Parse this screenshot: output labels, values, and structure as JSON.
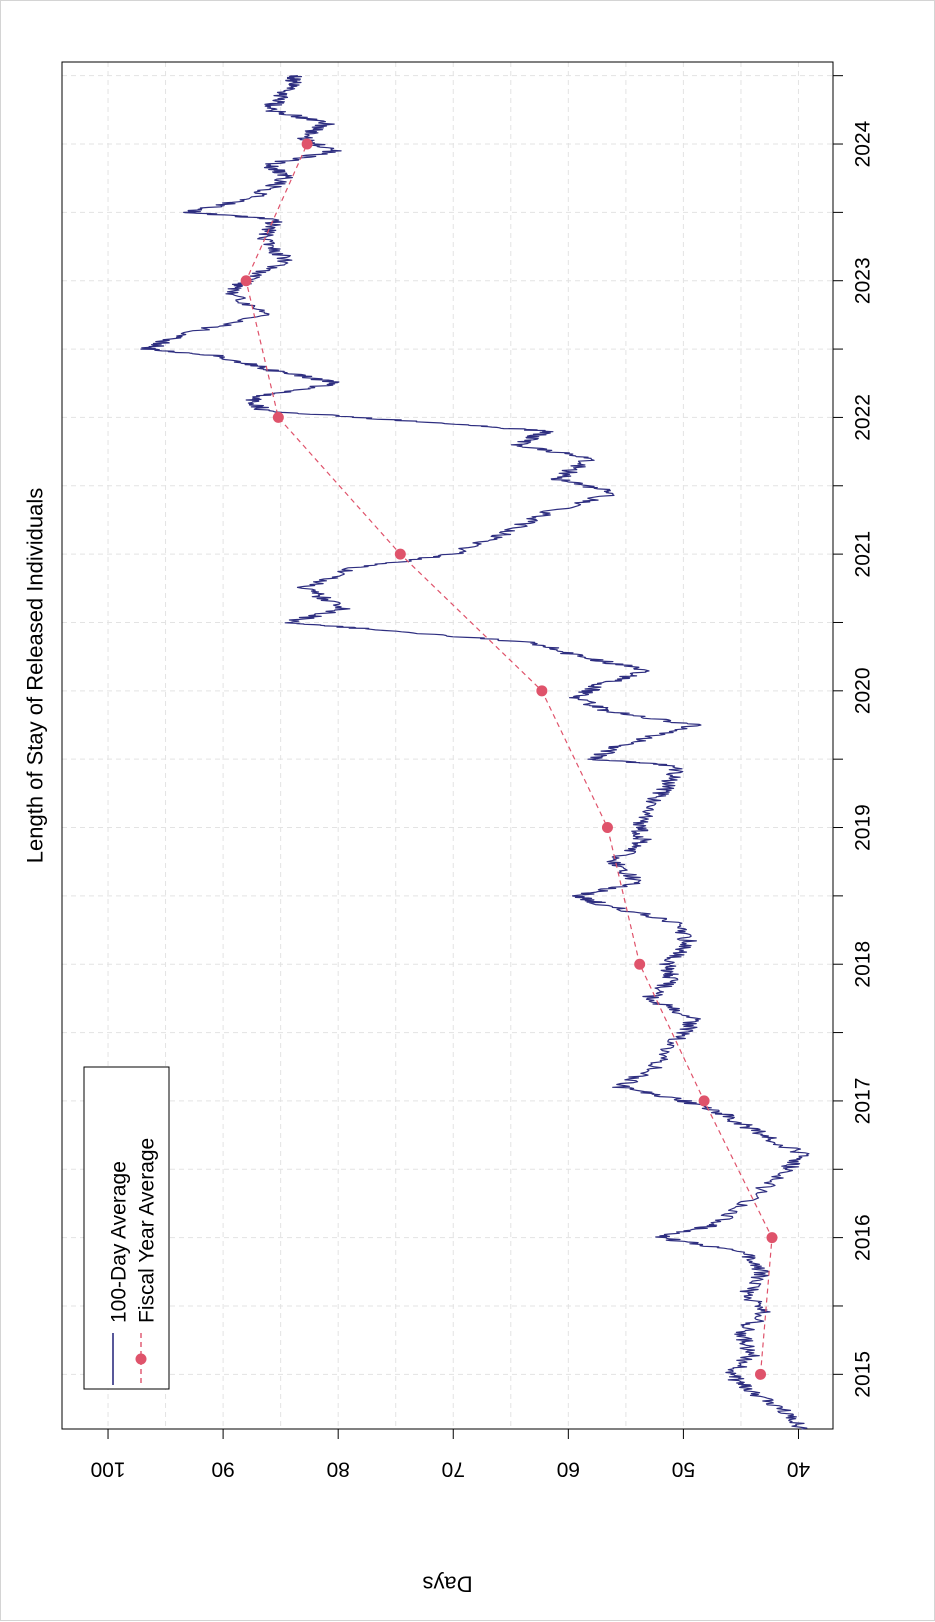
{
  "chart_data": {
    "type": "line",
    "title": "Length of Stay of Released Individuals",
    "xlabel": "",
    "ylabel": "Days",
    "orientation": "rotated-90-clockwise",
    "xlim": [
      2014.6,
      2024.6
    ],
    "ylim": [
      37,
      104
    ],
    "x_ticks": [
      2015,
      2016,
      2017,
      2018,
      2019,
      2020,
      2021,
      2022,
      2023,
      2024
    ],
    "x_tick_labels": [
      "2015",
      "2016",
      "2017",
      "2018",
      "2019",
      "2020",
      "2021",
      "2022",
      "2023",
      "2024"
    ],
    "y_ticks": [
      40,
      50,
      60,
      70,
      80,
      90,
      100
    ],
    "y_tick_labels": [
      "40",
      "50",
      "60",
      "70",
      "80",
      "90",
      "100"
    ],
    "grid": true,
    "legend_position": "bottom-left",
    "colors": {
      "series_100day": "#2e2e80",
      "series_fiscal": "#df536b",
      "grid": "#e3e3e3"
    },
    "series": [
      {
        "name": "100-Day Average",
        "style": "solid-line",
        "x": [
          2014.6,
          2014.75,
          2014.9,
          2015.0,
          2015.15,
          2015.3,
          2015.45,
          2015.6,
          2015.75,
          2015.9,
          2016.0,
          2016.1,
          2016.3,
          2016.5,
          2016.6,
          2016.75,
          2016.9,
          2017.0,
          2017.1,
          2017.25,
          2017.45,
          2017.6,
          2017.75,
          2017.9,
          2018.0,
          2018.15,
          2018.3,
          2018.45,
          2018.5,
          2018.6,
          2018.75,
          2018.9,
          2019.0,
          2019.15,
          2019.3,
          2019.45,
          2019.5,
          2019.6,
          2019.75,
          2019.85,
          2019.95,
          2020.05,
          2020.15,
          2020.25,
          2020.35,
          2020.45,
          2020.5,
          2020.6,
          2020.75,
          2020.9,
          2021.0,
          2021.15,
          2021.3,
          2021.45,
          2021.55,
          2021.7,
          2021.8,
          2021.9,
          2021.95,
          2022.05,
          2022.15,
          2022.25,
          2022.35,
          2022.45,
          2022.5,
          2022.6,
          2022.75,
          2022.9,
          2023.0,
          2023.15,
          2023.3,
          2023.45,
          2023.5,
          2023.6,
          2023.75,
          2023.85,
          2023.95,
          2024.05,
          2024.15,
          2024.25,
          2024.35,
          2024.45,
          2024.5
        ],
        "y": [
          39.5,
          41.5,
          44.5,
          46.0,
          44.0,
          45.0,
          43.0,
          44.5,
          43.0,
          45.0,
          52.0,
          47.0,
          44.0,
          41.0,
          39.5,
          43.0,
          46.5,
          50.0,
          55.5,
          52.5,
          50.5,
          49.0,
          53.0,
          51.0,
          51.5,
          49.5,
          50.5,
          57.5,
          59.0,
          54.0,
          56.0,
          53.5,
          54.0,
          53.0,
          51.5,
          50.5,
          58.0,
          55.5,
          49.0,
          56.5,
          59.5,
          57.0,
          53.0,
          59.0,
          63.0,
          77.0,
          84.5,
          79.5,
          83.0,
          78.5,
          70.0,
          65.5,
          62.0,
          56.0,
          61.0,
          58.0,
          64.5,
          62.0,
          70.0,
          86.5,
          87.5,
          80.0,
          86.0,
          90.5,
          96.5,
          94.0,
          86.0,
          89.5,
          88.0,
          84.5,
          86.5,
          85.5,
          93.0,
          87.5,
          84.5,
          86.0,
          80.5,
          83.0,
          81.0,
          86.0,
          85.0,
          84.0,
          83.5
        ]
      },
      {
        "name": "Fiscal Year Average",
        "style": "dashed-line-with-points",
        "x": [
          2015,
          2016,
          2017,
          2018,
          2019,
          2020,
          2021,
          2022,
          2023,
          2024
        ],
        "y": [
          43.3,
          42.3,
          48.2,
          53.8,
          56.6,
          62.3,
          74.6,
          85.2,
          88.0,
          82.7
        ]
      }
    ]
  }
}
